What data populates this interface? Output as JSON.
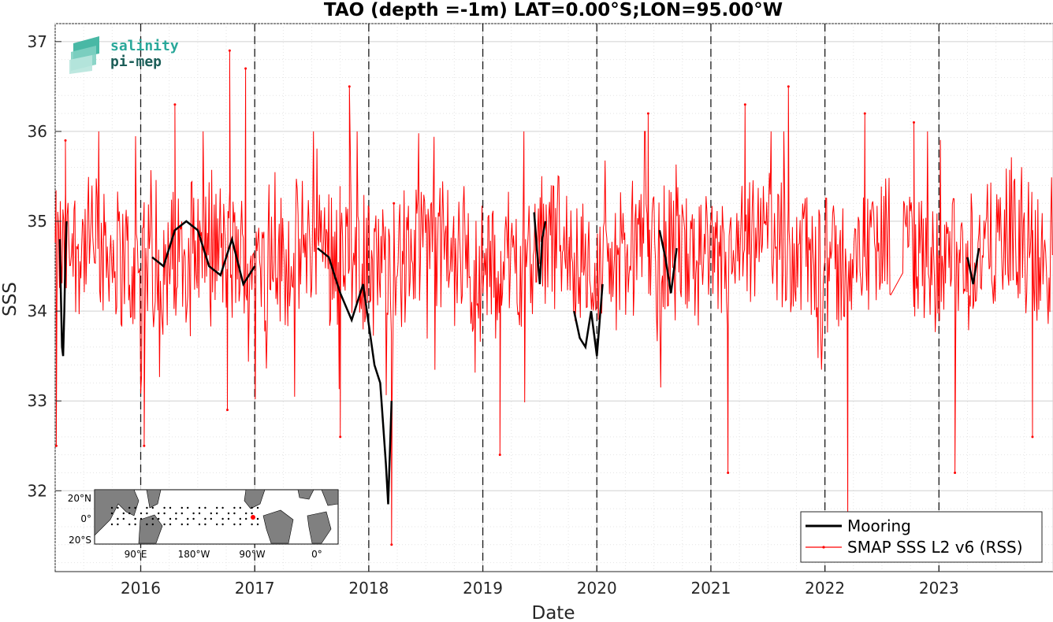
{
  "chart_data": {
    "type": "line",
    "title": "TAO (depth =-1m) LAT=0.00°S;LON=95.00°W",
    "xlabel": "Date",
    "ylabel": "SSS",
    "xlim": [
      2015.25,
      2024.0
    ],
    "ylim": [
      31.1,
      37.2
    ],
    "x_ticks": [
      "2016",
      "2017",
      "2018",
      "2019",
      "2020",
      "2021",
      "2022",
      "2023"
    ],
    "y_ticks": [
      "32",
      "33",
      "34",
      "35",
      "36",
      "37"
    ],
    "grid": true,
    "legend_position": "bottom-right",
    "year_markers": [
      2016,
      2017,
      2018,
      2019,
      2020,
      2021,
      2022,
      2023
    ],
    "series": [
      {
        "name": "Mooring",
        "color": "#000000",
        "segments": [
          {
            "x": [
              2015.29,
              2015.3,
              2015.31,
              2015.32,
              2015.33,
              2015.34,
              2015.35
            ],
            "y": [
              34.8,
              34.2,
              33.6,
              33.5,
              34.0,
              34.6,
              35.0
            ]
          },
          {
            "x": [
              2016.1,
              2016.2,
              2016.3,
              2016.4,
              2016.5,
              2016.6,
              2016.7,
              2016.8,
              2016.9,
              2017.0
            ],
            "y": [
              34.6,
              34.5,
              34.9,
              35.0,
              34.9,
              34.5,
              34.4,
              34.8,
              34.3,
              34.5
            ]
          },
          {
            "x": [
              2017.55,
              2017.65,
              2017.75,
              2017.85,
              2017.95,
              2018.05,
              2018.1,
              2018.15,
              2018.17,
              2018.2
            ],
            "y": [
              34.7,
              34.6,
              34.2,
              33.9,
              34.3,
              33.4,
              33.2,
              32.3,
              31.85,
              33.0
            ]
          },
          {
            "x": [
              2019.45,
              2019.48,
              2019.5,
              2019.52,
              2019.55
            ],
            "y": [
              35.1,
              34.6,
              34.3,
              34.8,
              35.0
            ]
          },
          {
            "x": [
              2019.8,
              2019.85,
              2019.9,
              2019.95,
              2020.0,
              2020.05
            ],
            "y": [
              34.0,
              33.7,
              33.6,
              34.0,
              33.5,
              34.3
            ]
          },
          {
            "x": [
              2020.55,
              2020.6,
              2020.65,
              2020.7
            ],
            "y": [
              34.9,
              34.6,
              34.2,
              34.7
            ]
          },
          {
            "x": [
              2023.25,
              2023.3,
              2023.35
            ],
            "y": [
              34.6,
              34.3,
              34.7
            ]
          }
        ]
      },
      {
        "name": "SMAP SSS L2 v6 (RSS)",
        "color": "#ff0000",
        "x_range": [
          2015.25,
          2024.0
        ],
        "mean_level": 34.6,
        "typical_spread": [
          33.5,
          35.7
        ],
        "extremes": [
          {
            "x": 2015.26,
            "y": 32.5
          },
          {
            "x": 2015.34,
            "y": 35.9
          },
          {
            "x": 2016.03,
            "y": 32.5
          },
          {
            "x": 2016.3,
            "y": 36.3
          },
          {
            "x": 2016.76,
            "y": 32.9
          },
          {
            "x": 2016.78,
            "y": 36.9
          },
          {
            "x": 2016.92,
            "y": 36.7
          },
          {
            "x": 2017.75,
            "y": 32.6
          },
          {
            "x": 2017.83,
            "y": 36.5
          },
          {
            "x": 2018.2,
            "y": 31.4
          },
          {
            "x": 2018.22,
            "y": 35.2
          },
          {
            "x": 2019.15,
            "y": 32.4
          },
          {
            "x": 2020.45,
            "y": 36.2
          },
          {
            "x": 2021.15,
            "y": 32.2
          },
          {
            "x": 2021.3,
            "y": 36.3
          },
          {
            "x": 2021.68,
            "y": 36.5
          },
          {
            "x": 2022.2,
            "y": 31.7
          },
          {
            "x": 2022.35,
            "y": 36.2
          },
          {
            "x": 2022.78,
            "y": 36.1
          },
          {
            "x": 2023.14,
            "y": 32.2
          },
          {
            "x": 2023.82,
            "y": 32.6
          }
        ],
        "gaps": [
          [
            2022.58,
            2022.68
          ]
        ]
      }
    ],
    "inset_map": {
      "lat_labels": [
        "20°N",
        "0°",
        "20°S"
      ],
      "lon_labels": [
        "90°E",
        "180°W",
        "90°W",
        "0°"
      ],
      "mooring_marker_color": "#ff0000"
    }
  },
  "logo": {
    "line1": "salinity",
    "line2": "pi-mep",
    "color1": "#2aa89a",
    "color2": "#1c5e58"
  }
}
